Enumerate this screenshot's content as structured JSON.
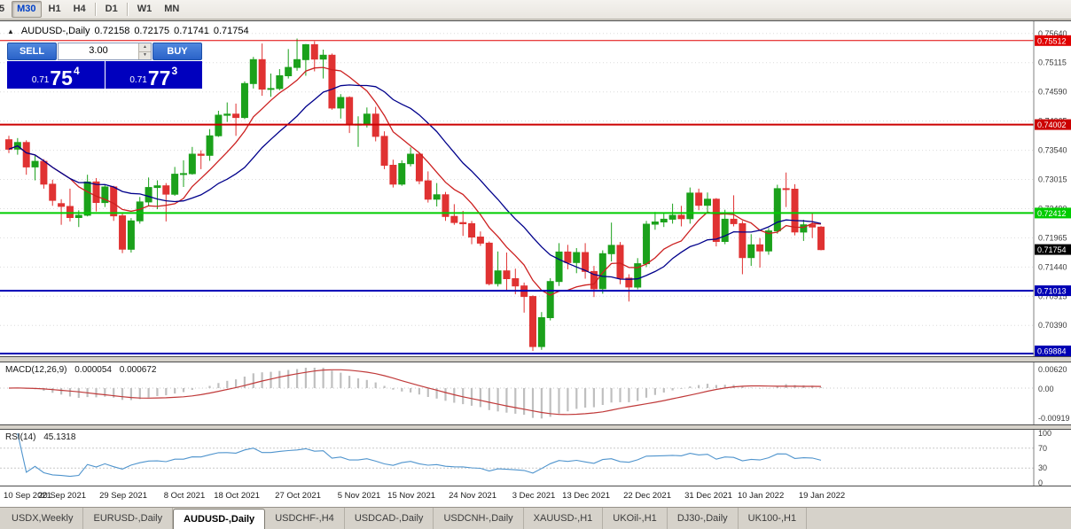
{
  "toolbar": {
    "timeframes": [
      {
        "label": "5",
        "clipped": true
      },
      {
        "label": "M30",
        "active": true
      },
      {
        "label": "H1"
      },
      {
        "label": "H4"
      },
      {
        "label": "D1",
        "sep_before": true
      },
      {
        "label": "W1",
        "sep_before": true
      },
      {
        "label": "MN"
      }
    ]
  },
  "chart_header": {
    "collapse_icon": "▲",
    "symbol_period": "AUDUSD-,Daily",
    "open": "0.72158",
    "high": "0.72175",
    "low": "0.71741",
    "close": "0.71754"
  },
  "trade_panel": {
    "sell_label": "SELL",
    "buy_label": "BUY",
    "volume": "3.00",
    "spin_up": "▲",
    "spin_down": "▼",
    "sell_price": {
      "prefix": "0.71",
      "big": "75",
      "sup": "4"
    },
    "buy_price": {
      "prefix": "0.71",
      "big": "77",
      "sup": "3"
    }
  },
  "chart_data": {
    "type": "candlestick",
    "symbol": "AUDUSD-",
    "timeframe": "Daily",
    "colors": {
      "bull": "#1ba11b",
      "bear": "#e03232"
    },
    "y_axis": {
      "max": 0.7586,
      "min": 0.69836,
      "labels": [
        "0.75640",
        "0.75115",
        "0.74590",
        "0.74065",
        "0.73540",
        "0.73015",
        "0.72490",
        "0.71965",
        "0.71440",
        "0.70915",
        "0.70390"
      ]
    },
    "x_labels": [
      {
        "index": 0,
        "label": "10 Sep 2021"
      },
      {
        "index": 6,
        "label": "20 Sep 2021"
      },
      {
        "index": 13,
        "label": "29 Sep 2021"
      },
      {
        "index": 20,
        "label": "8 Oct 2021"
      },
      {
        "index": 26,
        "label": "18 Oct 2021"
      },
      {
        "index": 33,
        "label": "27 Oct 2021"
      },
      {
        "index": 40,
        "label": "5 Nov 2021"
      },
      {
        "index": 46,
        "label": "15 Nov 2021"
      },
      {
        "index": 53,
        "label": "24 Nov 2021"
      },
      {
        "index": 60,
        "label": "3 Dec 2021"
      },
      {
        "index": 66,
        "label": "13 Dec 2021"
      },
      {
        "index": 73,
        "label": "22 Dec 2021"
      },
      {
        "index": 80,
        "label": "31 Dec 2021"
      },
      {
        "index": 86,
        "label": "10 Jan 2022"
      },
      {
        "index": 93,
        "label": "19 Jan 2022"
      }
    ],
    "candles": [
      [
        0.7373,
        0.738,
        0.7349,
        0.7356
      ],
      [
        0.7356,
        0.7376,
        0.7346,
        0.7368
      ],
      [
        0.7368,
        0.7372,
        0.731,
        0.7324
      ],
      [
        0.7324,
        0.7344,
        0.73,
        0.7334
      ],
      [
        0.7334,
        0.7338,
        0.7285,
        0.7293
      ],
      [
        0.7293,
        0.7301,
        0.7254,
        0.7264
      ],
      [
        0.7258,
        0.7266,
        0.722,
        0.7253
      ],
      [
        0.7253,
        0.7285,
        0.7226,
        0.7233
      ],
      [
        0.7233,
        0.7246,
        0.7216,
        0.7237
      ],
      [
        0.7237,
        0.731,
        0.7235,
        0.7297
      ],
      [
        0.7297,
        0.7304,
        0.7244,
        0.726
      ],
      [
        0.726,
        0.7292,
        0.7252,
        0.7288
      ],
      [
        0.7288,
        0.729,
        0.7227,
        0.7236
      ],
      [
        0.7236,
        0.7242,
        0.7169,
        0.7176
      ],
      [
        0.7176,
        0.7232,
        0.717,
        0.7227
      ],
      [
        0.7227,
        0.727,
        0.7222,
        0.7261
      ],
      [
        0.7261,
        0.7305,
        0.7254,
        0.7287
      ],
      [
        0.7287,
        0.73,
        0.7248,
        0.729
      ],
      [
        0.729,
        0.7295,
        0.7226,
        0.7275
      ],
      [
        0.7275,
        0.7324,
        0.7272,
        0.7311
      ],
      [
        0.7311,
        0.7336,
        0.7288,
        0.7312
      ],
      [
        0.7312,
        0.736,
        0.731,
        0.7347
      ],
      [
        0.7347,
        0.7354,
        0.732,
        0.7345
      ],
      [
        0.7345,
        0.7392,
        0.7335,
        0.738
      ],
      [
        0.738,
        0.7425,
        0.7378,
        0.7417
      ],
      [
        0.7417,
        0.744,
        0.7405,
        0.7419
      ],
      [
        0.7419,
        0.7438,
        0.738,
        0.7413
      ],
      [
        0.7413,
        0.7478,
        0.741,
        0.7474
      ],
      [
        0.7474,
        0.7522,
        0.7465,
        0.7517
      ],
      [
        0.7517,
        0.7546,
        0.7452,
        0.7464
      ],
      [
        0.7464,
        0.7492,
        0.745,
        0.7465
      ],
      [
        0.7465,
        0.75,
        0.7462,
        0.7488
      ],
      [
        0.7488,
        0.7536,
        0.7483,
        0.7503
      ],
      [
        0.7503,
        0.7555,
        0.7497,
        0.7517
      ],
      [
        0.7517,
        0.7545,
        0.7488,
        0.7544
      ],
      [
        0.7544,
        0.755,
        0.7496,
        0.7518
      ],
      [
        0.7518,
        0.7535,
        0.7483,
        0.7525
      ],
      [
        0.7525,
        0.7528,
        0.7427,
        0.743
      ],
      [
        0.743,
        0.7455,
        0.7411,
        0.7449
      ],
      [
        0.7449,
        0.7451,
        0.7385,
        0.74
      ],
      [
        0.74,
        0.7415,
        0.736,
        0.7401
      ],
      [
        0.7401,
        0.7431,
        0.7395,
        0.7419
      ],
      [
        0.7419,
        0.7432,
        0.737,
        0.7379
      ],
      [
        0.7379,
        0.7388,
        0.732,
        0.7327
      ],
      [
        0.7327,
        0.7337,
        0.7287,
        0.7293
      ],
      [
        0.7293,
        0.7336,
        0.729,
        0.733
      ],
      [
        0.733,
        0.7359,
        0.7325,
        0.7347
      ],
      [
        0.7347,
        0.735,
        0.7293,
        0.7299
      ],
      [
        0.7299,
        0.7316,
        0.726,
        0.7266
      ],
      [
        0.7266,
        0.7295,
        0.7253,
        0.7274
      ],
      [
        0.7274,
        0.7279,
        0.7227,
        0.7235
      ],
      [
        0.7235,
        0.7257,
        0.722,
        0.7224
      ],
      [
        0.7224,
        0.7245,
        0.72,
        0.7222
      ],
      [
        0.7222,
        0.7227,
        0.7185,
        0.7198
      ],
      [
        0.7198,
        0.7208,
        0.7182,
        0.7187
      ],
      [
        0.7187,
        0.719,
        0.7111,
        0.7114
      ],
      [
        0.7114,
        0.7172,
        0.7109,
        0.7137
      ],
      [
        0.7137,
        0.717,
        0.7101,
        0.7123
      ],
      [
        0.7123,
        0.7141,
        0.7095,
        0.711
      ],
      [
        0.711,
        0.7116,
        0.7062,
        0.7091
      ],
      [
        0.7091,
        0.7093,
        0.6993,
        0.7001
      ],
      [
        0.7001,
        0.7063,
        0.6995,
        0.7053
      ],
      [
        0.7053,
        0.7124,
        0.7048,
        0.7118
      ],
      [
        0.7118,
        0.7187,
        0.711,
        0.7171
      ],
      [
        0.7171,
        0.7184,
        0.714,
        0.7152
      ],
      [
        0.7152,
        0.7178,
        0.7133,
        0.717
      ],
      [
        0.717,
        0.7187,
        0.7123,
        0.7136
      ],
      [
        0.7136,
        0.7146,
        0.709,
        0.7105
      ],
      [
        0.7105,
        0.7174,
        0.7096,
        0.7168
      ],
      [
        0.7168,
        0.7224,
        0.7154,
        0.7183
      ],
      [
        0.7183,
        0.7189,
        0.7113,
        0.7124
      ],
      [
        0.7124,
        0.7131,
        0.7082,
        0.7108
      ],
      [
        0.7108,
        0.716,
        0.7104,
        0.715
      ],
      [
        0.715,
        0.7227,
        0.7144,
        0.7221
      ],
      [
        0.7221,
        0.7243,
        0.7211,
        0.7225
      ],
      [
        0.7225,
        0.7242,
        0.7216,
        0.723
      ],
      [
        0.723,
        0.7258,
        0.7222,
        0.7237
      ],
      [
        0.7237,
        0.7254,
        0.7217,
        0.7231
      ],
      [
        0.7231,
        0.7287,
        0.7222,
        0.7277
      ],
      [
        0.7277,
        0.7285,
        0.7246,
        0.7255
      ],
      [
        0.7255,
        0.7278,
        0.7243,
        0.7266
      ],
      [
        0.7266,
        0.7268,
        0.7181,
        0.719
      ],
      [
        0.719,
        0.7247,
        0.7185,
        0.723
      ],
      [
        0.723,
        0.7273,
        0.7217,
        0.7222
      ],
      [
        0.7222,
        0.7227,
        0.7131,
        0.7161
      ],
      [
        0.7161,
        0.7203,
        0.7146,
        0.7184
      ],
      [
        0.7184,
        0.7196,
        0.7143,
        0.7173
      ],
      [
        0.7173,
        0.7214,
        0.7166,
        0.7209
      ],
      [
        0.7209,
        0.7292,
        0.7204,
        0.7285
      ],
      [
        0.7285,
        0.7314,
        0.7252,
        0.7284
      ],
      [
        0.7284,
        0.7293,
        0.7201,
        0.7207
      ],
      [
        0.7207,
        0.7229,
        0.7191,
        0.722
      ],
      [
        0.722,
        0.7241,
        0.7196,
        0.7216
      ],
      [
        0.72158,
        0.72175,
        0.71741,
        0.71754
      ]
    ],
    "moving_averages": [
      {
        "period": 8,
        "color": "#cc2020"
      },
      {
        "period": 16,
        "color": "#00008b"
      }
    ],
    "horizontal_levels": [
      {
        "value": 0.75512,
        "label": "0.75512",
        "color": "#e00000",
        "width": 1
      },
      {
        "value": 0.74002,
        "label": "0.74002",
        "color": "#cc0000",
        "width": 2
      },
      {
        "value": 0.72412,
        "label": "0.72412",
        "color": "#00cc00",
        "width": 2
      },
      {
        "value": 0.71013,
        "label": "0.71013",
        "color": "#0000b4",
        "width": 2
      },
      {
        "value": 0.69884,
        "label": "0.69884",
        "color": "#0000b4",
        "width": 2
      }
    ],
    "current_price": {
      "value": 0.71754,
      "label": "0.71754",
      "color": "#000000"
    },
    "macd": {
      "label": "MACD(12,26,9)",
      "value_main": "0.000054",
      "value_signal": "0.000672",
      "fast": 12,
      "slow": 26,
      "signal": 9,
      "axis_labels": [
        "0.00620",
        "0.00",
        "-0.00919"
      ],
      "signal_color": "#c03a3a",
      "histogram_color": "#bfbfbf"
    },
    "rsi": {
      "label": "RSI(14)",
      "value": "45.1318",
      "period": 14,
      "levels": [
        100,
        70,
        30,
        0
      ],
      "color": "#4f94cd"
    }
  },
  "tabs": [
    {
      "label": "USDX,Weekly"
    },
    {
      "label": "EURUSD-,Daily"
    },
    {
      "label": "AUDUSD-,Daily",
      "active": true
    },
    {
      "label": "USDCHF-,H4"
    },
    {
      "label": "USDCAD-,Daily"
    },
    {
      "label": "USDCNH-,Daily"
    },
    {
      "label": "XAUUSD-,H1"
    },
    {
      "label": "UKOil-,H1"
    },
    {
      "label": "DJ30-,Daily"
    },
    {
      "label": "UK100-,H1"
    }
  ]
}
